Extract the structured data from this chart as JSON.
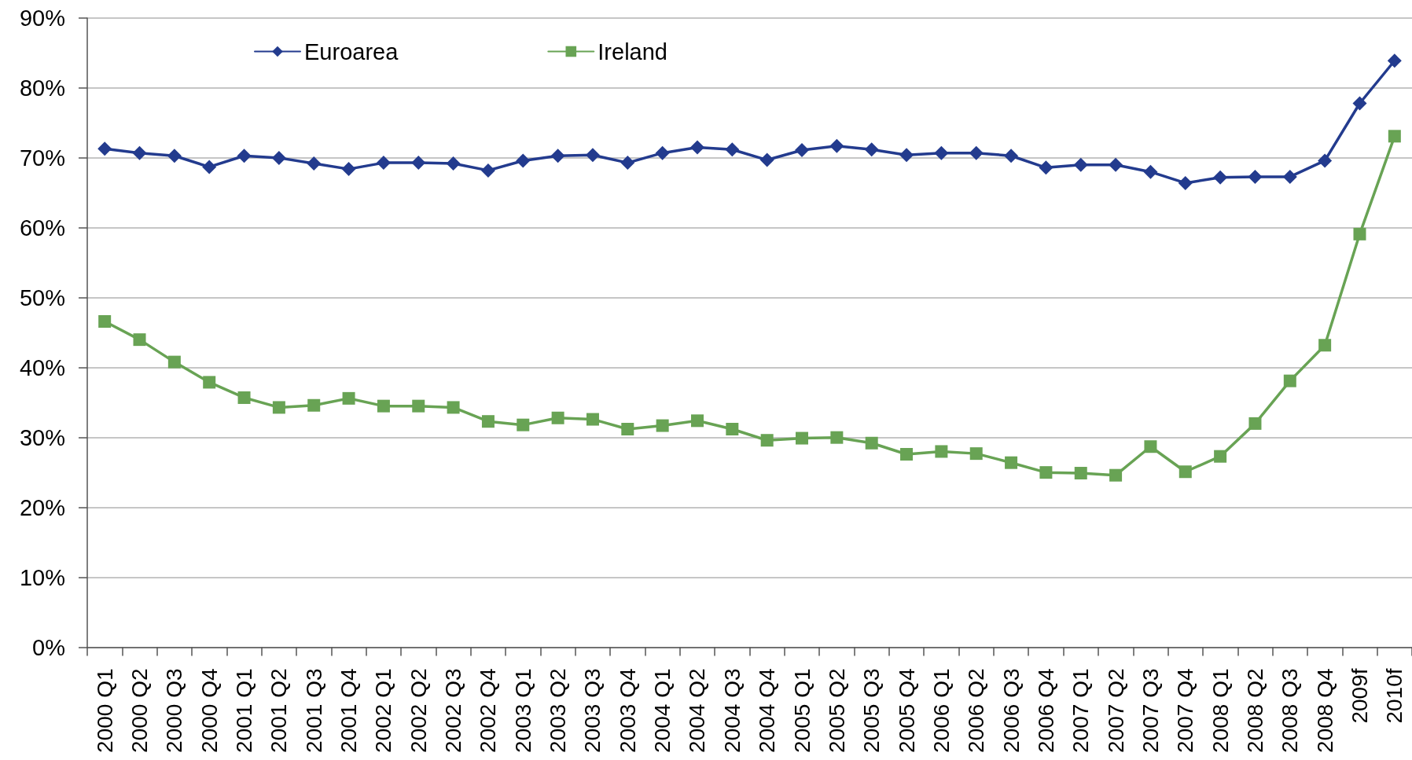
{
  "chart_data": {
    "type": "line",
    "categories": [
      "2000 Q1",
      "2000 Q2",
      "2000 Q3",
      "2000 Q4",
      "2001 Q1",
      "2001 Q2",
      "2001 Q3",
      "2001 Q4",
      "2002 Q1",
      "2002 Q2",
      "2002 Q3",
      "2002 Q4",
      "2003 Q1",
      "2003 Q2",
      "2003 Q3",
      "2003 Q4",
      "2004 Q1",
      "2004 Q2",
      "2004 Q3",
      "2004 Q4",
      "2005 Q1",
      "2005 Q2",
      "2005 Q3",
      "2005 Q4",
      "2006 Q1",
      "2006 Q2",
      "2006 Q3",
      "2006 Q4",
      "2007 Q1",
      "2007 Q2",
      "2007 Q3",
      "2007 Q4",
      "2008 Q1",
      "2008 Q2",
      "2008 Q3",
      "2008 Q4",
      "2009f",
      "2010f"
    ],
    "series": [
      {
        "name": "Euroarea",
        "color": "#233b8e",
        "marker": "diamond",
        "values": [
          71.3,
          70.7,
          70.3,
          68.7,
          70.3,
          70.0,
          69.2,
          68.4,
          69.3,
          69.3,
          69.2,
          68.2,
          69.6,
          70.3,
          70.4,
          69.3,
          70.7,
          71.5,
          71.2,
          69.7,
          71.1,
          71.7,
          71.2,
          70.4,
          70.7,
          70.7,
          70.3,
          68.6,
          69.0,
          69.0,
          68.0,
          66.4,
          67.2,
          67.3,
          67.3,
          69.6,
          77.8,
          83.9
        ]
      },
      {
        "name": "Ireland",
        "color": "#68a354",
        "marker": "square",
        "values": [
          46.6,
          44.0,
          40.8,
          37.9,
          35.7,
          34.3,
          34.6,
          35.6,
          34.5,
          34.5,
          34.3,
          32.3,
          31.8,
          32.8,
          32.6,
          31.2,
          31.7,
          32.4,
          31.2,
          29.6,
          29.9,
          30.0,
          29.2,
          27.6,
          28.0,
          27.7,
          26.4,
          25.0,
          24.9,
          24.6,
          28.7,
          25.1,
          27.3,
          32.0,
          38.1,
          43.2,
          59.1,
          73.1
        ]
      }
    ],
    "ylim": [
      0,
      90
    ],
    "yticks": [
      {
        "value": 0,
        "label": "0%"
      },
      {
        "value": 10,
        "label": "10%"
      },
      {
        "value": 20,
        "label": "20%"
      },
      {
        "value": 30,
        "label": "30%"
      },
      {
        "value": 40,
        "label": "40%"
      },
      {
        "value": 50,
        "label": "50%"
      },
      {
        "value": 60,
        "label": "60%"
      },
      {
        "value": 70,
        "label": "70%"
      },
      {
        "value": 80,
        "label": "80%"
      },
      {
        "value": 90,
        "label": "90%"
      }
    ],
    "grid": "y",
    "legend": "top left",
    "line_style": "solid"
  }
}
